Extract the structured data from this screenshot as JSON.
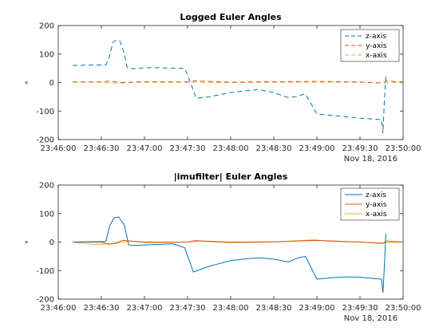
{
  "chart_data": [
    {
      "type": "line",
      "title": "Logged Euler Angles",
      "ylabel": "°",
      "xlabel": "",
      "date_label": "Nov 18, 2016",
      "xlim": [
        "23:46:00",
        "23:50:00"
      ],
      "ylim": [
        -200,
        200
      ],
      "x_ticks": [
        "23:46:00",
        "23:46:30",
        "23:47:00",
        "23:47:30",
        "23:48:00",
        "23:48:30",
        "23:49:00",
        "23:49:30",
        "23:50:00"
      ],
      "y_ticks": [
        "200",
        "100",
        "0",
        "-100",
        "-200"
      ],
      "y_tick_values": [
        200,
        100,
        0,
        -100,
        -200
      ],
      "legend_position": "top-right",
      "line_style": "dashed",
      "series": [
        {
          "name": "z-axis",
          "color": "#0072BD",
          "x": [
            "23:46:10",
            "23:46:33",
            "23:46:35",
            "23:46:38",
            "23:46:40",
            "23:46:43",
            "23:46:46",
            "23:46:48",
            "23:46:52",
            "23:47:00",
            "23:47:10",
            "23:47:20",
            "23:47:28",
            "23:47:32",
            "23:47:36",
            "23:47:45",
            "23:48:00",
            "23:48:12",
            "23:48:20",
            "23:48:30",
            "23:48:40",
            "23:48:47",
            "23:48:50",
            "23:48:52",
            "23:49:00",
            "23:49:10",
            "23:49:20",
            "23:49:30",
            "23:49:40",
            "23:49:45",
            "23:49:46",
            "23:49:47",
            "23:49:48"
          ],
          "values": [
            60,
            62,
            80,
            140,
            148,
            145,
            100,
            52,
            48,
            52,
            52,
            50,
            50,
            0,
            -55,
            -50,
            -35,
            -28,
            -25,
            -35,
            -53,
            -48,
            -42,
            -40,
            -110,
            -115,
            -120,
            -125,
            -128,
            -130,
            -178,
            -60,
            20
          ]
        },
        {
          "name": "y-axis",
          "color": "#D95319",
          "x": [
            "23:46:10",
            "23:46:30",
            "23:46:35",
            "23:46:45",
            "23:47:00",
            "23:47:30",
            "23:47:35",
            "23:48:00",
            "23:48:30",
            "23:49:00",
            "23:49:30",
            "23:49:46",
            "23:49:48",
            "23:50:00"
          ],
          "values": [
            2,
            2,
            5,
            0,
            3,
            2,
            6,
            1,
            3,
            4,
            2,
            -2,
            5,
            2
          ]
        },
        {
          "name": "x-axis",
          "color": "#EDB120",
          "x": [
            "23:46:10",
            "23:46:30",
            "23:46:40",
            "23:47:00",
            "23:47:30",
            "23:48:00",
            "23:48:30",
            "23:49:00",
            "23:49:30",
            "23:49:46",
            "23:50:00"
          ],
          "values": [
            1,
            1,
            -2,
            1,
            1,
            0,
            1,
            2,
            1,
            -1,
            1
          ]
        }
      ]
    },
    {
      "type": "line",
      "title": "|imufilter| Euler Angles",
      "ylabel": "°",
      "xlabel": "",
      "date_label": "Nov 18, 2016",
      "xlim": [
        "23:46:00",
        "23:50:00"
      ],
      "ylim": [
        -200,
        200
      ],
      "x_ticks": [
        "23:46:00",
        "23:46:30",
        "23:47:00",
        "23:47:30",
        "23:48:00",
        "23:48:30",
        "23:49:00",
        "23:49:30",
        "23:50:00"
      ],
      "y_ticks": [
        "200",
        "100",
        "0",
        "-100",
        "-200"
      ],
      "y_tick_values": [
        200,
        100,
        0,
        -100,
        -200
      ],
      "legend_position": "top-right",
      "line_style": "solid",
      "series": [
        {
          "name": "z-axis",
          "color": "#0072BD",
          "x": [
            "23:46:10",
            "23:46:33",
            "23:46:36",
            "23:46:39",
            "23:46:42",
            "23:46:46",
            "23:46:49",
            "23:46:52",
            "23:47:00",
            "23:47:10",
            "23:47:20",
            "23:47:28",
            "23:47:34",
            "23:47:45",
            "23:48:00",
            "23:48:12",
            "23:48:20",
            "23:48:30",
            "23:48:40",
            "23:48:47",
            "23:48:52",
            "23:49:00",
            "23:49:10",
            "23:49:20",
            "23:49:30",
            "23:49:40",
            "23:49:45",
            "23:49:46",
            "23:49:47",
            "23:49:48"
          ],
          "values": [
            0,
            2,
            60,
            85,
            88,
            60,
            -10,
            -12,
            -10,
            -8,
            -6,
            -20,
            -105,
            -85,
            -65,
            -58,
            -55,
            -60,
            -70,
            -55,
            -50,
            -130,
            -125,
            -122,
            -123,
            -128,
            -130,
            -178,
            -80,
            30
          ]
        },
        {
          "name": "y-axis",
          "color": "#D95319",
          "x": [
            "23:46:10",
            "23:46:30",
            "23:46:35",
            "23:46:40",
            "23:46:45",
            "23:47:00",
            "23:47:30",
            "23:47:35",
            "23:48:00",
            "23:48:30",
            "23:49:00",
            "23:49:30",
            "23:49:46",
            "23:49:48",
            "23:50:00"
          ],
          "values": [
            0,
            0,
            -8,
            -3,
            6,
            0,
            0,
            5,
            0,
            1,
            6,
            0,
            -5,
            4,
            0
          ]
        },
        {
          "name": "x-axis",
          "color": "#EDB120",
          "x": [
            "23:46:10",
            "23:46:25",
            "23:46:40",
            "23:46:50",
            "23:47:00",
            "23:47:30",
            "23:47:38",
            "23:48:00",
            "23:48:30",
            "23:48:58",
            "23:49:10",
            "23:49:30",
            "23:49:46",
            "23:50:00"
          ],
          "values": [
            0,
            -8,
            -5,
            4,
            -2,
            0,
            3,
            -2,
            0,
            8,
            2,
            0,
            -3,
            0
          ]
        }
      ]
    }
  ]
}
